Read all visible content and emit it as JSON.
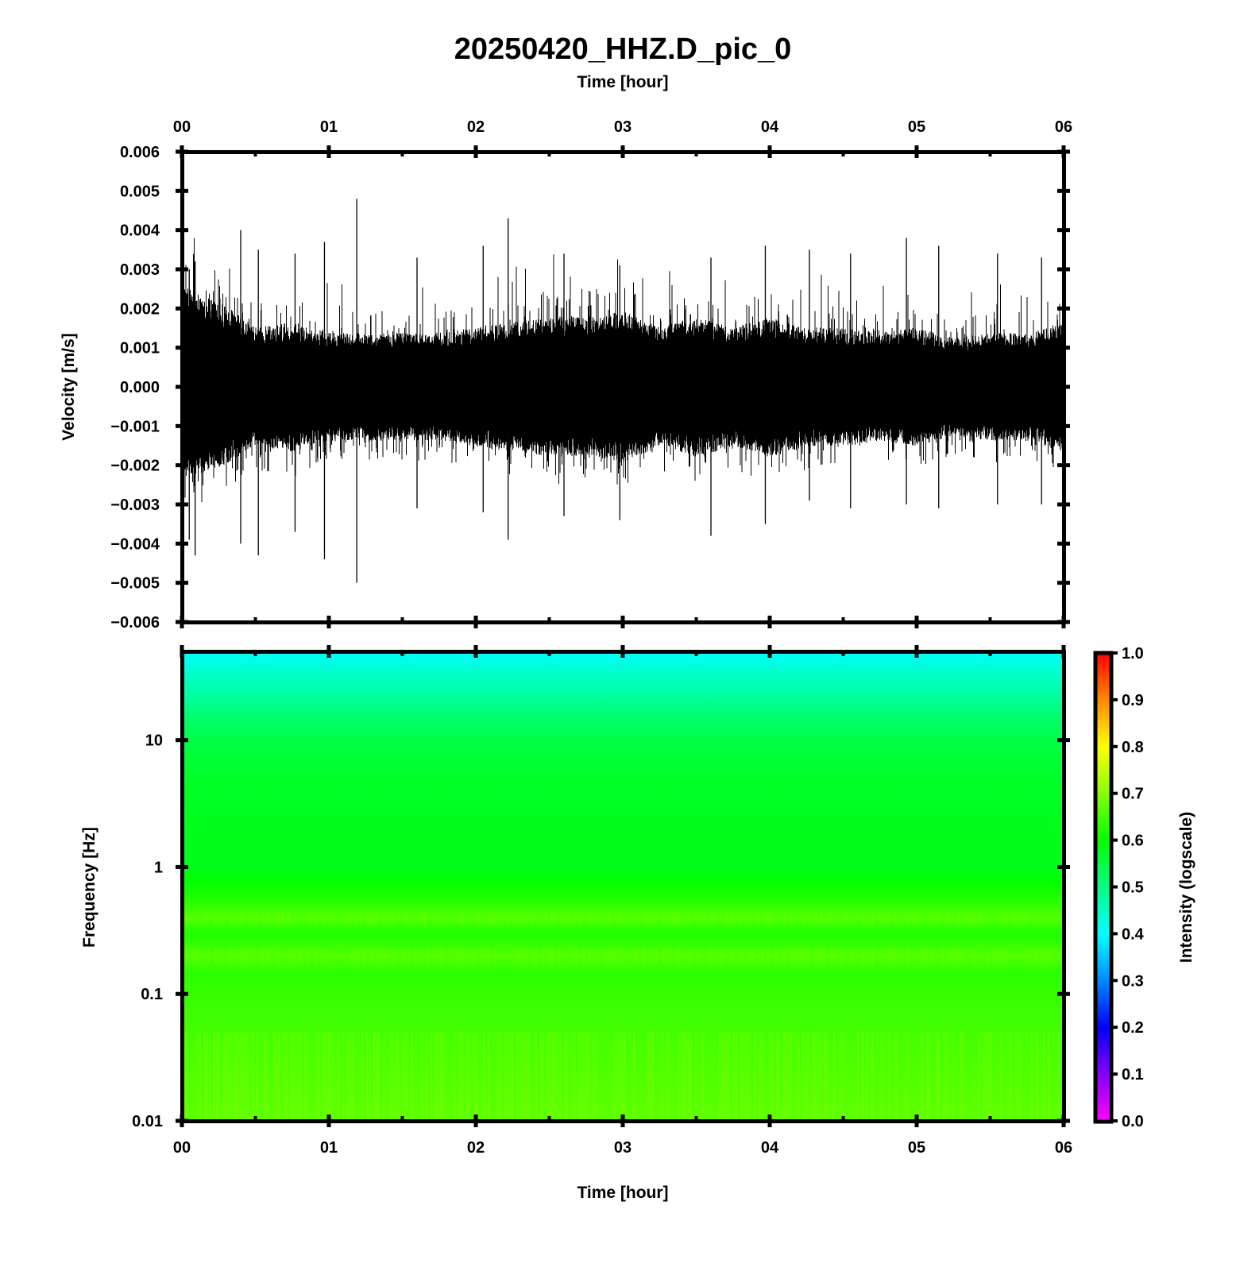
{
  "figure": {
    "title": "20250420_HHZ.D_pic_0"
  },
  "chart_data": [
    {
      "type": "line",
      "name": "seismogram",
      "xlabel": "Time [hour]",
      "ylabel": "Velocity [m/s]",
      "x_ticks": [
        "00",
        "01",
        "02",
        "03",
        "04",
        "05",
        "06"
      ],
      "xlim": [
        0,
        6
      ],
      "ylim": [
        -0.006,
        0.006
      ],
      "y_ticks": [
        "0.006",
        "0.005",
        "0.004",
        "0.003",
        "0.002",
        "0.001",
        "0.000",
        "−0.001",
        "−0.002",
        "−0.003",
        "−0.004",
        "−0.005",
        "−0.006"
      ],
      "y_tick_values": [
        0.006,
        0.005,
        0.004,
        0.003,
        0.002,
        0.001,
        0.0,
        -0.001,
        -0.002,
        -0.003,
        -0.004,
        -0.005,
        -0.006
      ],
      "series": [
        {
          "color": "#000000",
          "envelope": {
            "x": [
              0,
              0.25,
              0.5,
              0.75,
              1.0,
              1.25,
              1.5,
              1.75,
              2.0,
              2.25,
              2.5,
              2.75,
              3.0,
              3.25,
              3.5,
              3.75,
              4.0,
              4.25,
              4.5,
              4.75,
              5.0,
              5.25,
              5.5,
              5.75,
              6.0
            ],
            "upper": [
              0.0019,
              0.0016,
              0.0011,
              0.0012,
              0.001,
              0.001,
              0.001,
              0.001,
              0.0011,
              0.0012,
              0.0013,
              0.0013,
              0.0014,
              0.0011,
              0.0013,
              0.0011,
              0.0013,
              0.0011,
              0.0011,
              0.001,
              0.0011,
              0.0009,
              0.001,
              0.001,
              0.0012
            ],
            "lower": [
              -0.0017,
              -0.0015,
              -0.0011,
              -0.0012,
              -0.001,
              -0.001,
              -0.001,
              -0.001,
              -0.0011,
              -0.0012,
              -0.0013,
              -0.0013,
              -0.0014,
              -0.0011,
              -0.0013,
              -0.0011,
              -0.0013,
              -0.0011,
              -0.0011,
              -0.001,
              -0.0011,
              -0.0009,
              -0.001,
              -0.001,
              -0.0012
            ]
          },
          "spikes": [
            {
              "x": 0.05,
              "max": 0.003,
              "min": -0.0039
            },
            {
              "x": 0.09,
              "max": 0.0032,
              "min": -0.0043
            },
            {
              "x": 0.4,
              "max": 0.004,
              "min": -0.004
            },
            {
              "x": 0.52,
              "max": 0.0035,
              "min": -0.0043
            },
            {
              "x": 0.77,
              "max": 0.0034,
              "min": -0.0037
            },
            {
              "x": 0.97,
              "max": 0.0037,
              "min": -0.0044
            },
            {
              "x": 1.19,
              "max": 0.0048,
              "min": -0.005
            },
            {
              "x": 1.6,
              "max": 0.0033,
              "min": -0.0031
            },
            {
              "x": 2.05,
              "max": 0.0036,
              "min": -0.0032
            },
            {
              "x": 2.22,
              "max": 0.0043,
              "min": -0.0039
            },
            {
              "x": 2.6,
              "max": 0.0034,
              "min": -0.0033
            },
            {
              "x": 2.98,
              "max": 0.0031,
              "min": -0.0034
            },
            {
              "x": 3.6,
              "max": 0.0033,
              "min": -0.0038
            },
            {
              "x": 3.97,
              "max": 0.0036,
              "min": -0.0035
            },
            {
              "x": 4.27,
              "max": 0.0035,
              "min": -0.0029
            },
            {
              "x": 4.55,
              "max": 0.0034,
              "min": -0.0031
            },
            {
              "x": 4.93,
              "max": 0.0038,
              "min": -0.003
            },
            {
              "x": 5.15,
              "max": 0.0036,
              "min": -0.0031
            },
            {
              "x": 5.55,
              "max": 0.0034,
              "min": -0.003
            },
            {
              "x": 5.85,
              "max": 0.0033,
              "min": -0.003
            }
          ]
        }
      ]
    },
    {
      "type": "heatmap",
      "name": "spectrogram",
      "xlabel": "Time [hour]",
      "ylabel": "Frequency [Hz]",
      "x_ticks": [
        "00",
        "01",
        "02",
        "03",
        "04",
        "05",
        "06"
      ],
      "xlim": [
        0,
        6
      ],
      "y_scale": "log",
      "ylim": [
        0.01,
        50
      ],
      "y_ticks": [
        "10",
        "1",
        "0.1",
        "0.01"
      ],
      "y_tick_values": [
        10,
        1,
        0.1,
        0.01
      ],
      "intensity_profile": {
        "frequency": [
          50,
          35,
          25,
          15,
          10,
          5,
          2,
          1,
          0.8,
          0.6,
          0.4,
          0.3,
          0.2,
          0.15,
          0.1,
          0.05,
          0.02,
          0.01
        ],
        "intensity": [
          0.4,
          0.44,
          0.47,
          0.52,
          0.55,
          0.57,
          0.58,
          0.58,
          0.6,
          0.62,
          0.66,
          0.62,
          0.66,
          0.63,
          0.64,
          0.65,
          0.66,
          0.67
        ]
      },
      "colorbar": {
        "label": "Intensity (logscale)",
        "range": [
          0.0,
          1.0
        ],
        "ticks": [
          "1.0",
          "0.9",
          "0.8",
          "0.7",
          "0.6",
          "0.5",
          "0.4",
          "0.3",
          "0.2",
          "0.1",
          "0.0"
        ],
        "tick_values": [
          1.0,
          0.9,
          0.8,
          0.7,
          0.6,
          0.5,
          0.4,
          0.3,
          0.2,
          0.1,
          0.0
        ],
        "colormap": [
          "#ff00ff",
          "#8800ff",
          "#0000ff",
          "#0088ff",
          "#00ffff",
          "#00ff88",
          "#00ff00",
          "#88ff00",
          "#ffff00",
          "#ff8800",
          "#ff0000"
        ]
      }
    }
  ]
}
